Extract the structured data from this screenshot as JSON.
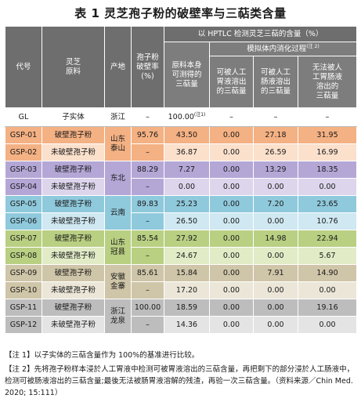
{
  "title": "表 1  灵芝孢子粉的破壁率与三萜类含量",
  "header": {
    "code": "代号",
    "material": "灵芝\n原料",
    "origin": "产地",
    "rate": "孢子粉\n破壁率\n(%)",
    "hptlc": "以 HPTLC 检测灵芝三萜的含量（%）",
    "measurable": "原料本身\n可测得的\n三萜量",
    "digestion": "模拟体内消化过程",
    "digestion_sup": "(注 2)",
    "gastric": "可被人工\n胃液溶出\n的三萜量",
    "intestinal": "可被人工\n肠液溶出\n的三萜量",
    "undissolved": "无法被人\n工胃肠液\n溶出的\n三萜量"
  },
  "gl_row": {
    "code": "GL",
    "material": "子实体",
    "origin": "浙江",
    "rate": "–",
    "measurable": "100.00",
    "measurable_sup": "(注1)",
    "gastric": "–",
    "intestinal": "–",
    "undissolved": "–"
  },
  "rows": [
    {
      "code": "GSP-01",
      "material": "破壁孢子粉",
      "rate": "95.76",
      "measurable": "43.50",
      "gastric": "0.00",
      "intestinal": "27.18",
      "undissolved": "31.95"
    },
    {
      "code": "GSP-02",
      "material": "未破壁孢子粉",
      "rate": "–",
      "measurable": "36.87",
      "gastric": "0.00",
      "intestinal": "26.59",
      "undissolved": "16.99"
    },
    {
      "code": "GSP-03",
      "material": "破壁孢子粉",
      "rate": "88.29",
      "measurable": "7.27",
      "gastric": "0.00",
      "intestinal": "13.29",
      "undissolved": "18.35"
    },
    {
      "code": "GSP-04",
      "material": "未破壁孢子粉",
      "rate": "–",
      "measurable": "0.00",
      "gastric": "0.00",
      "intestinal": "0.00",
      "undissolved": "0.00"
    },
    {
      "code": "GSP-05",
      "material": "破壁孢子粉",
      "rate": "89.83",
      "measurable": "25.23",
      "gastric": "0.00",
      "intestinal": "7.20",
      "undissolved": "23.65"
    },
    {
      "code": "GSP-06",
      "material": "未破壁孢子粉",
      "rate": "–",
      "measurable": "26.50",
      "gastric": "0.00",
      "intestinal": "0.00",
      "undissolved": "10.76"
    },
    {
      "code": "GSP-07",
      "material": "破壁孢子粉",
      "rate": "85.54",
      "measurable": "27.92",
      "gastric": "0.00",
      "intestinal": "14.98",
      "undissolved": "22.94"
    },
    {
      "code": "GSP-08",
      "material": "未破壁孢子粉",
      "rate": "–",
      "measurable": "24.67",
      "gastric": "0.00",
      "intestinal": "0.00",
      "undissolved": "5.67"
    },
    {
      "code": "GSP-09",
      "material": "破壁孢子粉",
      "rate": "85.61",
      "measurable": "15.84",
      "gastric": "0.00",
      "intestinal": "7.91",
      "undissolved": "14.90"
    },
    {
      "code": "GSP-10",
      "material": "未破壁孢子粉",
      "rate": "–",
      "measurable": "17.20",
      "gastric": "0.00",
      "intestinal": "0.00",
      "undissolved": "0.00"
    },
    {
      "code": "GSP-11",
      "material": "破壁孢子粉",
      "rate": "100.00",
      "measurable": "18.59",
      "gastric": "0.00",
      "intestinal": "0.00",
      "undissolved": "19.16"
    },
    {
      "code": "GSP-12",
      "material": "未破壁孢子粉",
      "rate": "–",
      "measurable": "14.36",
      "gastric": "0.00",
      "intestinal": "0.00",
      "undissolved": "0.00"
    }
  ],
  "origins": [
    "山东\n泰山",
    "东北",
    "云南",
    "山东\n冠县",
    "安徽\n金寨",
    "浙江\n龙泉"
  ],
  "colors": {
    "pair1_dark": "#f4b183",
    "pair1_light": "#fbe0cc",
    "pair2_dark": "#b4a7d6",
    "pair2_light": "#dcd5ec",
    "pair3_dark": "#8fc9dc",
    "pair3_light": "#cfe8f1",
    "pair4_dark": "#b9cf82",
    "pair4_light": "#e1ebc6",
    "pair5_dark": "#cfc5a8",
    "pair5_light": "#ebe6d8",
    "pair6_dark": "#bdbdbd",
    "pair6_light": "#e4e4e4",
    "header": "#6e6e6e"
  },
  "notes": {
    "note1": "【注 1】以子实体的三萜含量作为 100%的基准进行比较。",
    "note2": "【注 2】先将孢子粉样本浸於人工胃液中检测可被胃液溶出的三萜含量，再把剩下的部分浸於人工肠液中，检测可被肠液溶出的三萜含量;最後无法被肠胃液溶解的残渣，再验一次三萜含量。（资料来源／Chin Med. 2020; 15:111）"
  }
}
